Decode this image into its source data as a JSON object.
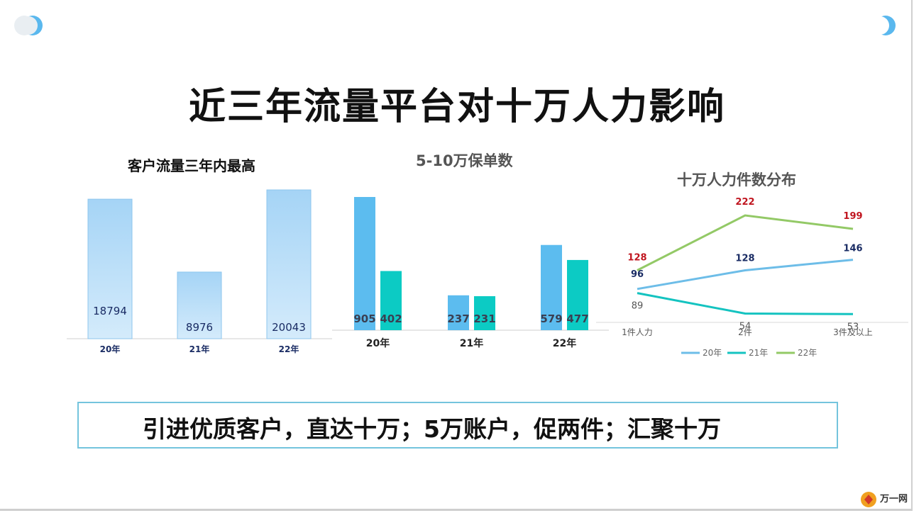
{
  "slide": {
    "title": "近三年流量平台对十万人力影响",
    "banner": "引进优质客户，直达十万；5万账户，促两件；汇聚十万",
    "logo_text": "万一网",
    "colors": {
      "bar_light": "#a9d8f7",
      "bar_blue": "#5cbcef",
      "bar_teal": "#0ccbc4",
      "line_20": "#6dbde8",
      "line_21": "#14c3c0",
      "line_22": "#93c966",
      "label_red": "#c0151f",
      "label_navy": "#1a2c64"
    }
  },
  "chart_data": [
    {
      "type": "bar",
      "title": "客户流量三年内最高",
      "categories": [
        "20年",
        "21年",
        "22年"
      ],
      "values": [
        18794,
        8976,
        20043
      ]
    },
    {
      "type": "bar",
      "title": "5-10万保单数",
      "categories": [
        "20年",
        "21年",
        "22年"
      ],
      "series": [
        {
          "values": [
            905,
            237,
            579
          ]
        },
        {
          "values": [
            402,
            231,
            477
          ]
        }
      ]
    },
    {
      "type": "line",
      "title": "十万人力件数分布",
      "categories": [
        "1件人力",
        "2件",
        "3件及以上"
      ],
      "series": [
        {
          "name": "20年",
          "values": [
            96,
            128,
            146
          ]
        },
        {
          "name": "21年",
          "values": [
            89,
            54,
            53
          ]
        },
        {
          "name": "22年",
          "values": [
            128,
            222,
            199
          ]
        }
      ],
      "legend": "bottom"
    }
  ]
}
